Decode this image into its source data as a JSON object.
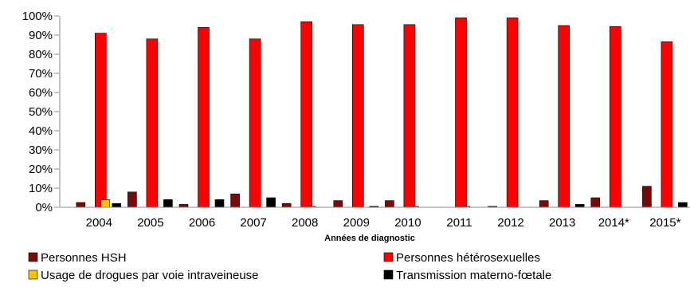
{
  "chart_data": {
    "type": "bar",
    "xlabel": "Années de diagnostic",
    "ylabel": "",
    "ylim": [
      0,
      100
    ],
    "y_ticks": [
      "0%",
      "10%",
      "20%",
      "30%",
      "40%",
      "50%",
      "60%",
      "70%",
      "80%",
      "90%",
      "100%"
    ],
    "grid": false,
    "legend_position": "bottom",
    "categories": [
      "2004",
      "2005",
      "2006",
      "2007",
      "2008",
      "2009",
      "2010",
      "2011",
      "2012",
      "2013",
      "2014*",
      "2015*"
    ],
    "series": [
      {
        "name": "Personnes HSH",
        "color": "#7a0a0a",
        "values": [
          2.5,
          8,
          1.5,
          7,
          2,
          3.5,
          3.5,
          0,
          0.5,
          3.5,
          5,
          11
        ]
      },
      {
        "name": "Personnes hétérosexuelles",
        "color": "#ff0000",
        "values": [
          91,
          88,
          94,
          88,
          97,
          95.5,
          95.5,
          99,
          99,
          95,
          94.5,
          86.5
        ]
      },
      {
        "name": "Usage de drogues par voie intraveineuse",
        "color": "#ffc000",
        "values": [
          4,
          0,
          0,
          0,
          0.5,
          0,
          0.5,
          0.5,
          0,
          0,
          0,
          0
        ]
      },
      {
        "name": "Transmission materno-fœtale",
        "color": "#000000",
        "values": [
          2,
          4,
          4,
          5,
          0,
          0.5,
          0,
          0,
          0,
          1.5,
          0,
          2.5
        ]
      }
    ]
  }
}
